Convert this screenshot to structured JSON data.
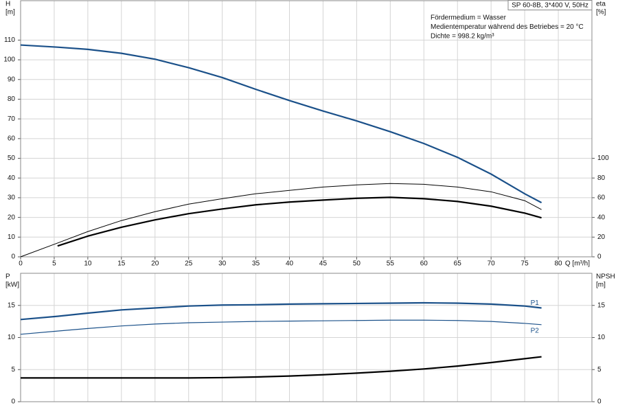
{
  "chart_data": [
    {
      "type": "line",
      "title": "SP 60-8B, 3*400 V, 50Hz",
      "annotations": [
        "Fördermedium = Wasser",
        "Medientemperatur während des Betriebes = 20 °C",
        "Dichte = 998.2 kg/m³"
      ],
      "ylabel": [
        "H",
        "[m]"
      ],
      "y2label": [
        "eta",
        "[%]"
      ],
      "xlabel": "Q [m³/h]",
      "x": [
        0,
        5.5,
        10,
        15,
        20,
        25,
        30,
        35,
        40,
        45,
        50,
        55,
        60,
        65,
        70,
        75,
        77.5
      ],
      "series": [
        {
          "color": "#1a5089",
          "linewidth": 2.2,
          "values": [
            107.5,
            106.4,
            105.3,
            103.3,
            100.3,
            96,
            91,
            85,
            79.3,
            74,
            69,
            63.5,
            57.5,
            50.5,
            42,
            32,
            27.5
          ]
        },
        {
          "axis": "y2",
          "color": "#000000",
          "linewidth": 1,
          "values": [
            0,
            14,
            25.6,
            36.8,
            45.8,
            53.5,
            59,
            64,
            67.4,
            70.8,
            73,
            74.4,
            73.6,
            70.8,
            66,
            57,
            48
          ]
        },
        {
          "axis": "y2",
          "color": "#000000",
          "linewidth": 2.2,
          "values": [
            null,
            11,
            21,
            30,
            37.5,
            43.8,
            48.6,
            52.8,
            55.6,
            57.6,
            59.4,
            60.4,
            59,
            56.2,
            51.4,
            44.4,
            39.6
          ]
        }
      ],
      "xlim": [
        0,
        85
      ],
      "xticks": [
        0,
        5,
        10,
        15,
        20,
        25,
        30,
        35,
        40,
        45,
        50,
        55,
        60,
        65,
        70,
        75,
        80
      ],
      "show_xtick_labels": true,
      "ylim": [
        0,
        130
      ],
      "yticks": [
        0,
        10,
        20,
        30,
        40,
        50,
        60,
        70,
        80,
        90,
        100,
        110
      ],
      "y2lim": [
        0,
        260
      ],
      "y2ticks": [
        0,
        20,
        40,
        60,
        80,
        100
      ],
      "grid": true
    },
    {
      "type": "line",
      "ylabel": [
        "P",
        "[kW]"
      ],
      "y2label": [
        "NPSH",
        "[m]"
      ],
      "x": [
        0,
        5.5,
        10,
        15,
        20,
        25,
        30,
        35,
        40,
        45,
        50,
        55,
        60,
        65,
        70,
        75,
        77.5
      ],
      "series": [
        {
          "name": "P1",
          "color": "#1a5089",
          "linewidth": 2.2,
          "values": [
            12.8,
            13.3,
            13.8,
            14.3,
            14.6,
            14.9,
            15.05,
            15.1,
            15.2,
            15.25,
            15.3,
            15.35,
            15.4,
            15.35,
            15.2,
            14.9,
            14.6
          ]
        },
        {
          "name": "P2",
          "color": "#1a5089",
          "linewidth": 1.2,
          "values": [
            10.5,
            11,
            11.4,
            11.8,
            12.1,
            12.3,
            12.4,
            12.5,
            12.55,
            12.6,
            12.65,
            12.7,
            12.7,
            12.65,
            12.5,
            12.2,
            12
          ]
        },
        {
          "axis": "y2",
          "color": "#000000",
          "linewidth": 2.2,
          "values": [
            3.7,
            3.7,
            3.7,
            3.7,
            3.7,
            3.7,
            3.75,
            3.85,
            4,
            4.2,
            4.45,
            4.75,
            5.1,
            5.55,
            6.1,
            6.7,
            7
          ]
        }
      ],
      "xlim": [
        0,
        85
      ],
      "xticks": [
        0,
        5,
        10,
        15,
        20,
        25,
        30,
        35,
        40,
        45,
        50,
        55,
        60,
        65,
        70,
        75,
        80
      ],
      "show_xtick_labels": false,
      "ylim": [
        0,
        20
      ],
      "yticks": [
        0,
        5,
        10,
        15
      ],
      "y2lim": [
        0,
        20
      ],
      "y2ticks": [
        0,
        5,
        10,
        15
      ],
      "grid": true
    }
  ]
}
